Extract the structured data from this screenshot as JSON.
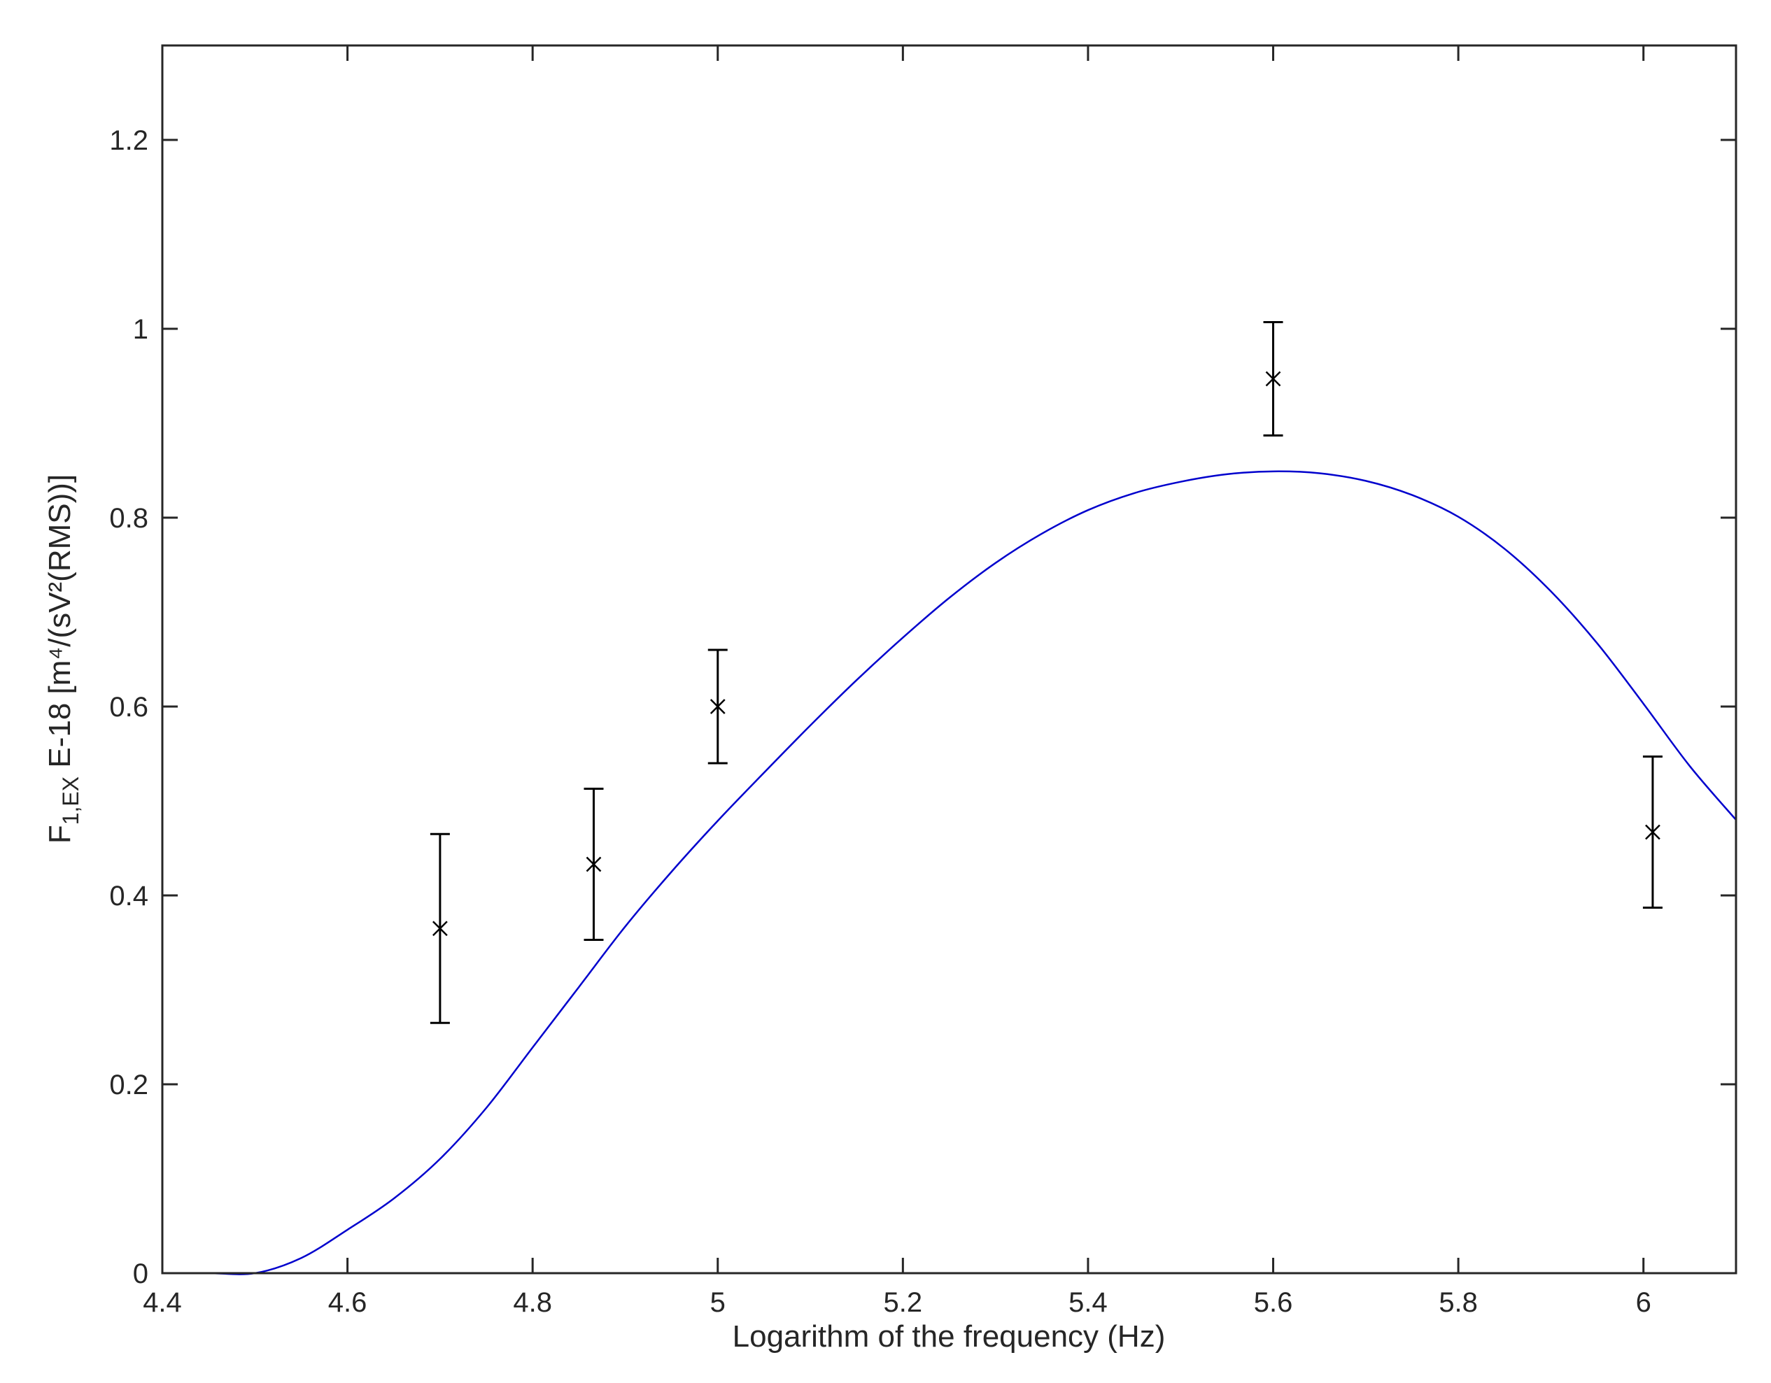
{
  "chart_data": {
    "type": "scatter",
    "title": "",
    "xlabel": "Logarithm of the frequency (Hz)",
    "ylabel": {
      "main": "F",
      "subscript": "1,EX",
      "rest": " E-18 [m⁴/(sV²(RMS))]"
    },
    "xlim": [
      4.4,
      6.1
    ],
    "ylim": [
      0,
      1.3
    ],
    "grid": false,
    "xticks": [
      "4.4",
      "4.6",
      "4.8",
      "5",
      "5.2",
      "5.4",
      "5.6",
      "5.8",
      "6"
    ],
    "yticks": [
      "0",
      "0.2",
      "0.4",
      "0.6",
      "0.8",
      "1",
      "1.2"
    ],
    "series": [
      {
        "kind": "errorbar",
        "marker": "x",
        "color": "#000000",
        "points": [
          {
            "x": 4.7,
            "y": 0.365,
            "ylow": 0.265,
            "yhigh": 0.465
          },
          {
            "x": 4.866,
            "y": 0.433,
            "ylow": 0.353,
            "yhigh": 0.513
          },
          {
            "x": 5.0,
            "y": 0.6,
            "ylow": 0.54,
            "yhigh": 0.66
          },
          {
            "x": 5.6,
            "y": 0.947,
            "ylow": 0.887,
            "yhigh": 1.007
          },
          {
            "x": 6.01,
            "y": 0.467,
            "ylow": 0.387,
            "yhigh": 0.547
          }
        ]
      },
      {
        "kind": "line",
        "color": "#0000cd",
        "x": [
          4.4,
          4.45,
          4.5,
          4.55,
          4.6,
          4.65,
          4.7,
          4.75,
          4.8,
          4.85,
          4.9,
          4.95,
          5.0,
          5.05,
          5.1,
          5.15,
          5.2,
          5.25,
          5.3,
          5.35,
          5.4,
          5.45,
          5.5,
          5.55,
          5.6,
          5.65,
          5.7,
          5.75,
          5.8,
          5.85,
          5.9,
          5.95,
          6.0,
          6.05,
          6.1
        ],
        "y": [
          0.0,
          0.0,
          0.0,
          0.016,
          0.046,
          0.079,
          0.121,
          0.175,
          0.239,
          0.303,
          0.367,
          0.425,
          0.479,
          0.53,
          0.58,
          0.628,
          0.673,
          0.715,
          0.752,
          0.783,
          0.808,
          0.826,
          0.838,
          0.846,
          0.849,
          0.847,
          0.839,
          0.824,
          0.801,
          0.767,
          0.722,
          0.667,
          0.603,
          0.537,
          0.48
        ]
      }
    ]
  }
}
